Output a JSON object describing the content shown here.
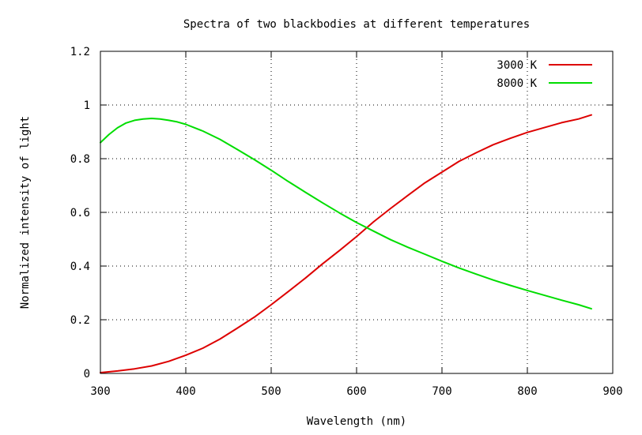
{
  "chart_data": {
    "type": "line",
    "title": "Spectra of two blackbodies at different temperatures",
    "xlabel": "Wavelength (nm)",
    "ylabel": "Normalized intensity of light",
    "xlim": [
      300,
      900
    ],
    "ylim": [
      0,
      1.2
    ],
    "x_ticks": [
      300,
      400,
      500,
      600,
      700,
      800,
      900
    ],
    "x_tick_labels": [
      "300",
      "400",
      "500",
      "600",
      "700",
      "800",
      "900"
    ],
    "y_ticks": [
      0,
      0.2,
      0.4,
      0.6,
      0.8,
      1.0,
      1.2
    ],
    "y_tick_labels": [
      "0",
      "0.2",
      "0.4",
      "0.6",
      "0.8",
      "1",
      "1.2"
    ],
    "grid": true,
    "legend_position": "top-right",
    "series": [
      {
        "name": "3000 K",
        "color": "#dd0000",
        "x": [
          300,
          320,
          340,
          360,
          380,
          400,
          420,
          440,
          460,
          480,
          500,
          520,
          540,
          560,
          580,
          600,
          620,
          640,
          660,
          680,
          700,
          720,
          740,
          760,
          780,
          800,
          820,
          840,
          860,
          875
        ],
        "y": [
          0.003,
          0.009,
          0.017,
          0.028,
          0.045,
          0.068,
          0.094,
          0.128,
          0.168,
          0.209,
          0.256,
          0.305,
          0.355,
          0.408,
          0.458,
          0.51,
          0.565,
          0.615,
          0.663,
          0.71,
          0.75,
          0.79,
          0.822,
          0.852,
          0.876,
          0.898,
          0.916,
          0.934,
          0.948,
          0.963
        ]
      },
      {
        "name": "8000 K",
        "color": "#00dd00",
        "x": [
          300,
          310,
          320,
          330,
          340,
          350,
          360,
          370,
          380,
          390,
          400,
          420,
          440,
          460,
          480,
          500,
          520,
          540,
          560,
          580,
          600,
          620,
          640,
          660,
          680,
          700,
          720,
          740,
          760,
          780,
          800,
          820,
          840,
          860,
          875
        ],
        "y": [
          0.86,
          0.89,
          0.915,
          0.933,
          0.943,
          0.948,
          0.95,
          0.948,
          0.943,
          0.937,
          0.928,
          0.903,
          0.872,
          0.835,
          0.797,
          0.757,
          0.715,
          0.675,
          0.636,
          0.598,
          0.562,
          0.53,
          0.498,
          0.47,
          0.444,
          0.418,
          0.393,
          0.37,
          0.348,
          0.328,
          0.309,
          0.291,
          0.273,
          0.256,
          0.241
        ]
      }
    ]
  }
}
